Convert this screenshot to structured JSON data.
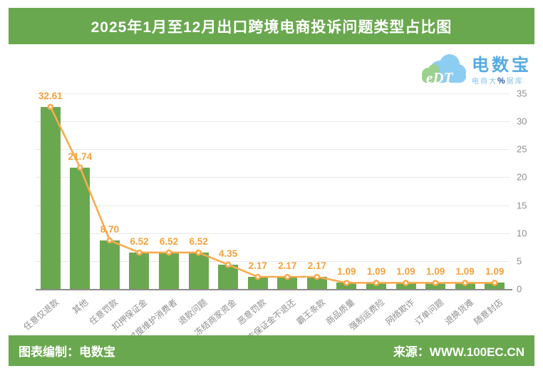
{
  "header": {
    "title": "2025年1月至12月出口跨境电商投诉问题类型占比图",
    "bg_color": "#6AA84F"
  },
  "logo": {
    "abbr": "eDT",
    "brand": "电数宝",
    "subtitle_pre": "电商大",
    "subtitle_pct": "%",
    "subtitle_post": "据库",
    "cloud_color": "#8ECDF2",
    "cloud_accent_color": "#9BD08F",
    "brand_color": "#55AAE3",
    "subtitle_color": "#85C3EC",
    "pct_color": "#2A5CAA"
  },
  "chart_data": {
    "type": "bar",
    "line_overlay": true,
    "title": "2025年1月至12月出口跨境电商投诉问题类型占比图",
    "categories": [
      "任意仅退款",
      "其他",
      "任意罚款",
      "扣押保证金",
      "过度维护消费者",
      "退款问题",
      "冻结商家资金",
      "恶意罚款",
      "退店保证金不退还",
      "霸王条款",
      "商品质量",
      "强制运费险",
      "网络欺诈",
      "订单问题",
      "退换货难",
      "随意封店"
    ],
    "values": [
      32.61,
      21.74,
      8.7,
      6.52,
      6.52,
      6.52,
      4.35,
      2.17,
      2.17,
      2.17,
      1.09,
      1.09,
      1.09,
      1.09,
      1.09,
      1.09
    ],
    "xlabel": "",
    "ylabel": "",
    "ylim": [
      0,
      35
    ],
    "yticks": [
      0,
      5,
      10,
      15,
      20,
      25,
      30,
      35
    ],
    "y_axis_side": "right",
    "grid": true,
    "legend": "none",
    "bar_color": "#6AA84F",
    "line_color": "#FAAB4D",
    "value_label_color": "#F6A13B",
    "axis_text_color": "#8E8E8E",
    "grid_color": "#E9E9E9",
    "axis_line_color": "#8C8C8C"
  },
  "footer": {
    "left": "图表编制：电数宝",
    "right": "来源：WWW.100EC.CN",
    "bg_color": "#6AA84F"
  }
}
